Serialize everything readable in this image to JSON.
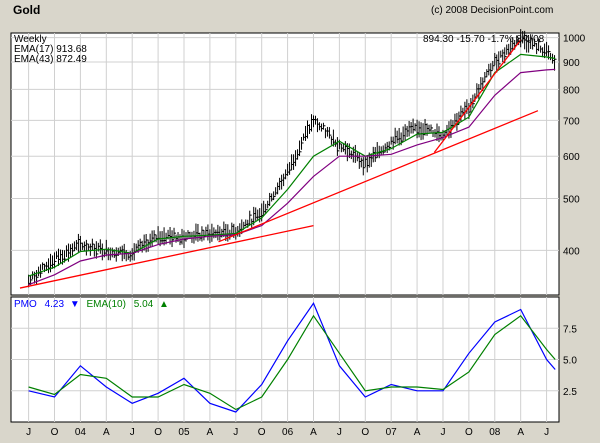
{
  "title": "Gold",
  "copyright": "(c) 2008 DecisionPoint.com",
  "period": "Weekly",
  "quote": "894.30  -15.70  -1.7%  8/4/08",
  "ema17_label": "EMA(17) 913.68",
  "ema43_label": "EMA(43) 872.49",
  "pmo_label": "PMO",
  "pmo_value": "4.23",
  "pmo_arrow": "▼",
  "pmo_ema_label": "EMA(10)",
  "pmo_ema_value": "5.04",
  "pmo_ema_arrow": "▲",
  "colors": {
    "background": "#d9d6cb",
    "price": "#000000",
    "ema17": "#008000",
    "ema43": "#800080",
    "trend": "#ff0000",
    "pmo": "#0000ff",
    "pmo_ema": "#008000",
    "grid": "#d0d0d0"
  },
  "chart_data": [
    {
      "type": "line",
      "subtype": "weekly price bars with moving averages",
      "x": [
        "2003-07",
        "2003-10",
        "2004-01",
        "2004-04",
        "2004-07",
        "2004-10",
        "2005-01",
        "2005-04",
        "2005-07",
        "2005-10",
        "2006-01",
        "2006-04",
        "2006-07",
        "2006-10",
        "2007-01",
        "2007-04",
        "2007-07",
        "2007-10",
        "2008-01",
        "2008-04",
        "2008-07",
        "2008-08"
      ],
      "x_ticks": [
        "J",
        "O",
        "04",
        "A",
        "J",
        "O",
        "05",
        "A",
        "J",
        "O",
        "06",
        "A",
        "J",
        "O",
        "07",
        "A",
        "J",
        "O",
        "08",
        "A",
        "J"
      ],
      "y_ticks": [
        400,
        500,
        600,
        700,
        800,
        900,
        1000
      ],
      "ylim": [
        330,
        1020
      ],
      "log_scale": true,
      "grid": true,
      "series": [
        {
          "name": "EMA(17)",
          "values": [
            358,
            372,
            398,
            402,
            395,
            420,
            425,
            427,
            430,
            460,
            520,
            600,
            640,
            600,
            620,
            660,
            665,
            710,
            860,
            930,
            920,
            914
          ]
        },
        {
          "name": "EMA(43)",
          "values": [
            345,
            360,
            382,
            392,
            395,
            410,
            420,
            425,
            428,
            445,
            490,
            550,
            600,
            600,
            605,
            630,
            650,
            680,
            780,
            860,
            870,
            872
          ]
        },
        {
          "name": "Price",
          "values": [
            350,
            385,
            410,
            400,
            395,
            425,
            425,
            430,
            435,
            470,
            560,
            700,
            630,
            580,
            640,
            680,
            660,
            740,
            900,
            1000,
            940,
            894
          ]
        }
      ],
      "trendlines": [
        {
          "from": [
            "2003-06",
            340
          ],
          "to": [
            "2006-04",
            445
          ]
        },
        {
          "from": [
            "2005-05",
            415
          ],
          "to": [
            "2008-06",
            730
          ]
        },
        {
          "from": [
            "2007-06",
            610
          ],
          "to": [
            "2008-04",
            990
          ]
        }
      ],
      "legend": "top-left"
    },
    {
      "type": "line",
      "x": [
        "2003-07",
        "2003-10",
        "2004-01",
        "2004-04",
        "2004-07",
        "2004-10",
        "2005-01",
        "2005-04",
        "2005-07",
        "2005-10",
        "2006-01",
        "2006-04",
        "2006-07",
        "2006-10",
        "2007-01",
        "2007-04",
        "2007-07",
        "2007-10",
        "2008-01",
        "2008-04",
        "2008-07",
        "2008-08"
      ],
      "y_ticks": [
        2.5,
        5.0,
        7.5
      ],
      "ylim": [
        0,
        10
      ],
      "grid": true,
      "series": [
        {
          "name": "PMO",
          "values": [
            2.5,
            2.0,
            4.5,
            2.8,
            1.5,
            2.3,
            3.5,
            1.5,
            0.8,
            3.0,
            6.5,
            9.5,
            4.5,
            2.0,
            3.0,
            2.5,
            2.5,
            5.5,
            8.0,
            9.0,
            5.0,
            4.2
          ]
        },
        {
          "name": "EMA(10)",
          "values": [
            2.8,
            2.2,
            3.8,
            3.5,
            2.0,
            2.0,
            3.0,
            2.3,
            1.0,
            2.0,
            5.0,
            8.5,
            5.5,
            2.5,
            2.8,
            2.8,
            2.6,
            4.0,
            7.0,
            8.5,
            5.8,
            5.0
          ]
        }
      ],
      "legend": "top-left"
    }
  ]
}
